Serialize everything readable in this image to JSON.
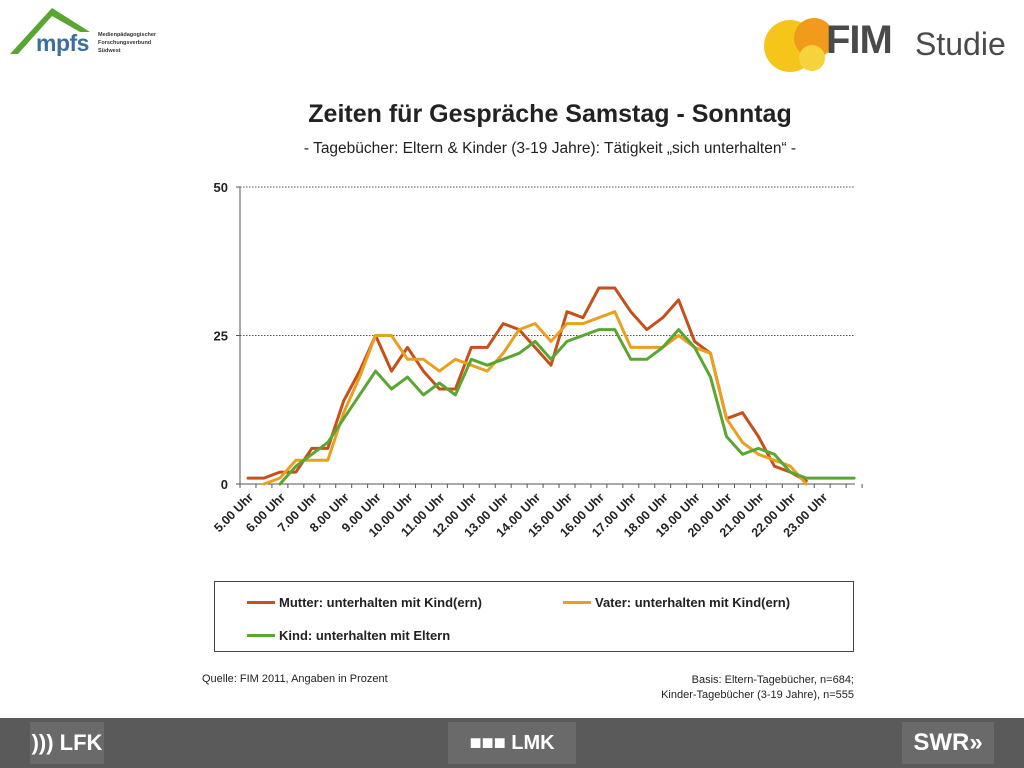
{
  "logos": {
    "mpfs_word": "mpfs",
    "mpfs_sub_1": "Medienpädagogischer",
    "mpfs_sub_2": "Forschungsverbund",
    "mpfs_sub_3": "Südwest",
    "fim_word": "FIM",
    "studie_word": "Studie",
    "footer_left": "))) LFK",
    "footer_center": "■■■ LMK",
    "footer_right": "SWR»"
  },
  "chart_data": {
    "type": "line",
    "title": "Zeiten für Gespräche Samstag - Sonntag",
    "subtitle": "- Tagebücher: Eltern & Kinder (3-19 Jahre): Tätigkeit „sich unterhalten“ -",
    "xlabel": "",
    "ylabel": "",
    "ylim": [
      0,
      50
    ],
    "yticks": [
      0,
      25,
      50
    ],
    "grid": true,
    "legend_position": "bottom",
    "x_tick_labels": [
      "5.00 Uhr",
      "6.00 Uhr",
      "7.00 Uhr",
      "8.00 Uhr",
      "9.00 Uhr",
      "10.00 Uhr",
      "11.00 Uhr",
      "12.00 Uhr",
      "13.00 Uhr",
      "14.00 Uhr",
      "15.00 Uhr",
      "16.00 Uhr",
      "17.00 Uhr",
      "18.00 Uhr",
      "19.00 Uhr",
      "20.00 Uhr",
      "21.00 Uhr",
      "22.00 Uhr",
      "23.00 Uhr"
    ],
    "x": [
      "5.00",
      "5.30",
      "6.00",
      "6.30",
      "7.00",
      "7.30",
      "8.00",
      "8.30",
      "9.00",
      "9.30",
      "10.00",
      "10.30",
      "11.00",
      "11.30",
      "12.00",
      "12.30",
      "13.00",
      "13.30",
      "14.00",
      "14.30",
      "15.00",
      "15.30",
      "16.00",
      "16.30",
      "17.00",
      "17.30",
      "18.00",
      "18.30",
      "19.00",
      "19.30",
      "20.00",
      "20.30",
      "21.00",
      "21.30",
      "22.00",
      "22.30",
      "23.00",
      "23.30",
      "24.00"
    ],
    "series": [
      {
        "name": "Mutter: unterhalten mit Kind(ern)",
        "color": "#c6501c",
        "values": [
          1,
          1,
          2,
          2,
          6,
          6,
          14,
          19,
          25,
          19,
          23,
          19,
          16,
          16,
          23,
          23,
          27,
          26,
          23,
          20,
          29,
          28,
          33,
          33,
          29,
          26,
          28,
          31,
          24,
          22,
          11,
          12,
          8,
          3,
          2,
          0.5,
          null,
          null,
          null
        ]
      },
      {
        "name": "Vater: unterhalten mit Kind(ern)",
        "color": "#e9a021",
        "values": [
          null,
          0,
          1,
          4,
          4,
          4,
          12,
          18,
          25,
          25,
          21,
          21,
          19,
          21,
          20,
          19,
          22,
          26,
          27,
          24,
          27,
          27,
          28,
          29,
          23,
          23,
          23,
          25,
          23,
          22,
          11,
          7,
          5,
          4,
          3,
          0,
          null,
          null,
          null
        ]
      },
      {
        "name": "Kind: unterhalten mit Eltern",
        "color": "#5aa632",
        "values": [
          null,
          null,
          0,
          3,
          5,
          7,
          11,
          15,
          19,
          16,
          18,
          15,
          17,
          15,
          21,
          20,
          21,
          22,
          24,
          21,
          24,
          25,
          26,
          26,
          21,
          21,
          23,
          26,
          23,
          18,
          8,
          5,
          6,
          5,
          2,
          1,
          1,
          1,
          1
        ]
      }
    ]
  },
  "legend": {
    "mother": "Mutter: unterhalten mit Kind(ern)",
    "father": "Vater: unterhalten mit Kind(ern)",
    "child": "Kind: unterhalten mit Eltern"
  },
  "notes": {
    "source": "Quelle: FIM 2011, Angaben in Prozent",
    "basis_1": "Basis: Eltern-Tagebücher, n=684;",
    "basis_2": "Kinder-Tagebücher (3-19 Jahre), n=555"
  }
}
